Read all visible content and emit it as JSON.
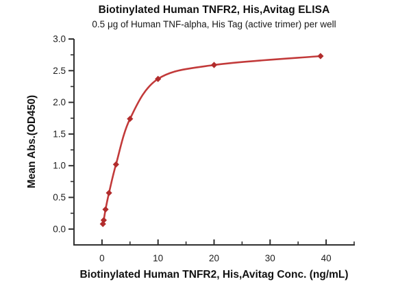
{
  "chart_data": {
    "type": "scatter",
    "title": "Biotinylated Human TNFR2, His,Avitag ELISA",
    "subtitle": "0.5 μg of Human TNF-alpha, His Tag (active trimer) per well",
    "xlabel": "Biotinylated Human TNFR2, His,Avitag Conc. (ng/mL)",
    "ylabel": "Mean Abs.(OD450)",
    "x": [
      0.16,
      0.31,
      0.63,
      1.25,
      2.5,
      5,
      10,
      20,
      39
    ],
    "y": [
      0.08,
      0.14,
      0.31,
      0.57,
      1.02,
      1.74,
      2.37,
      2.59,
      2.73
    ],
    "curve": "4PL fit line through points",
    "marker": "diamond",
    "xlim": [
      -5,
      45
    ],
    "ylim": [
      -0.25,
      3.0
    ],
    "x_major_ticks": [
      0,
      10,
      20,
      30,
      40
    ],
    "x_minor_ticks": [
      5,
      15,
      25,
      35,
      45
    ],
    "y_major_ticks": [
      0.0,
      0.5,
      1.0,
      1.5,
      2.0,
      2.5,
      3.0
    ],
    "y_minor_ticks": [
      0.25,
      0.75,
      1.25,
      1.75,
      2.25,
      2.75
    ],
    "grid": false,
    "legend": null,
    "colors": {
      "line": "#c23a3a",
      "marker": "#b22c2c",
      "axis": "#2f2f2f",
      "text": "#1c1c1c"
    }
  }
}
